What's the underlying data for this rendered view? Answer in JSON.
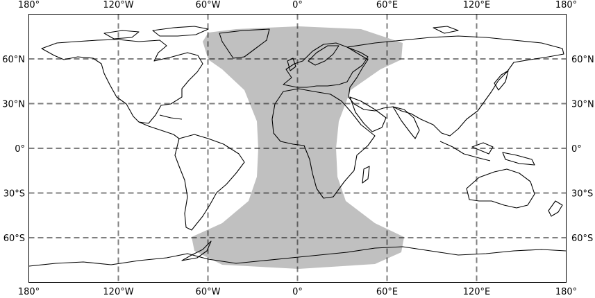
{
  "map": {
    "projection": "Plate Carree",
    "extent": {
      "lon": [
        -180,
        180
      ],
      "lat": [
        -90,
        90
      ]
    },
    "lon_ticks": [
      {
        "value": -180,
        "label": "180°"
      },
      {
        "value": -120,
        "label": "120°W"
      },
      {
        "value": -60,
        "label": "60°W"
      },
      {
        "value": 0,
        "label": "0°"
      },
      {
        "value": 60,
        "label": "60°E"
      },
      {
        "value": 120,
        "label": "120°E"
      },
      {
        "value": 180,
        "label": "180°"
      }
    ],
    "lat_ticks": [
      {
        "value": 60,
        "label": "60°N"
      },
      {
        "value": 30,
        "label": "30°N"
      },
      {
        "value": 0,
        "label": "0°"
      },
      {
        "value": -30,
        "label": "30°S"
      },
      {
        "value": -60,
        "label": "60°S"
      }
    ],
    "gridlines": true,
    "region_color": "#c0c0c0",
    "coastline_color": "#000000"
  }
}
